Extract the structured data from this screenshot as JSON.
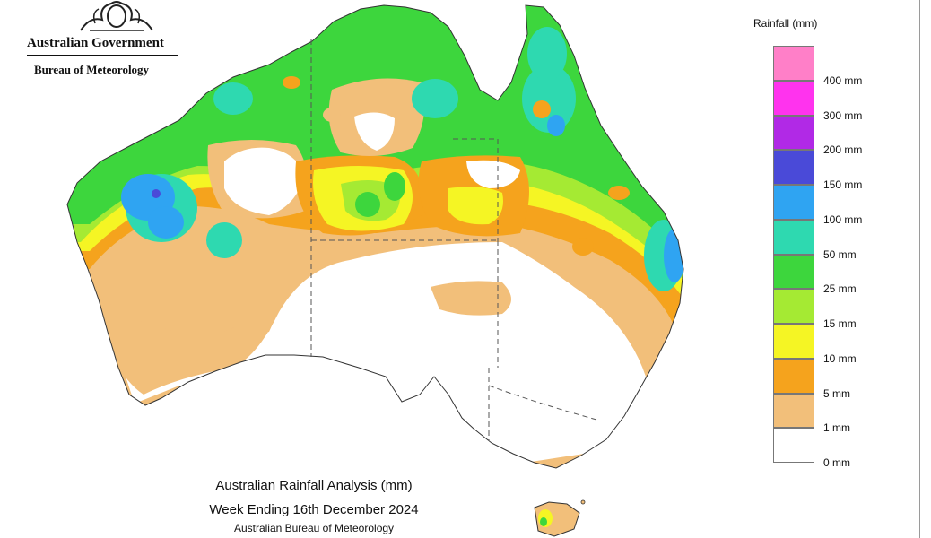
{
  "header": {
    "org_name": "Australian Government",
    "dept_name": "Bureau of Meteorology"
  },
  "legend": {
    "title": "Rainfall (mm)",
    "bands": [
      {
        "color": "#ff7fc8"
      },
      {
        "label": "400 mm",
        "color": "#ff33ee"
      },
      {
        "label": "300 mm",
        "color": "#b129e6"
      },
      {
        "label": "200 mm",
        "color": "#4a4ad8"
      },
      {
        "label": "150 mm",
        "color": "#2fa4f2"
      },
      {
        "label": "100 mm",
        "color": "#2ed9b0"
      },
      {
        "label": "50 mm",
        "color": "#3dd63d"
      },
      {
        "label": "25 mm",
        "color": "#a5ea33"
      },
      {
        "label": "15 mm",
        "color": "#f5f524"
      },
      {
        "label": "10 mm",
        "color": "#f5a31d"
      },
      {
        "label": "5 mm",
        "color": "#f2bf7a"
      },
      {
        "label": "1 mm",
        "color": "#ffffff"
      },
      {
        "label": "0 mm"
      }
    ]
  },
  "caption": {
    "line1": "Australian Rainfall Analysis (mm)",
    "line2": "Week Ending 16th December 2024",
    "line3": "Australian Bureau of Meteorology"
  }
}
